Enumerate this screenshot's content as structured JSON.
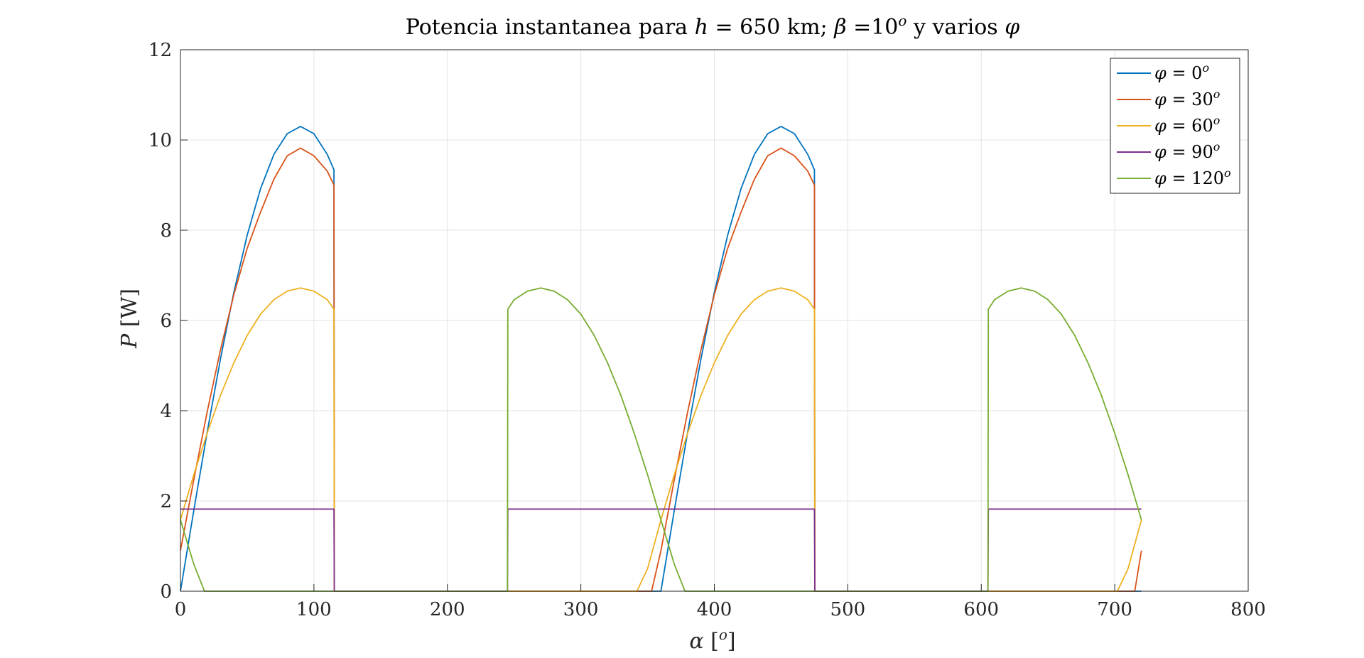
{
  "chart_data": {
    "type": "line",
    "title": "Potencia instantanea para h = 650 km; β =10º y varios φ",
    "title_parts": {
      "p1": "Potencia instantanea para ",
      "h": "h",
      "p2": " = 650 km; ",
      "beta": "β",
      "p3": " =10",
      "sup": "o",
      "p4": " y varios ",
      "phi": "φ"
    },
    "xlabel": "α [º]",
    "xlabel_parts": {
      "sym": "α",
      "open": " [",
      "sup": "o",
      "close": "]"
    },
    "ylabel": "P [W]",
    "ylabel_parts": {
      "sym": "P",
      "rest": " [W]"
    },
    "xlim": [
      0,
      800
    ],
    "ylim": [
      0,
      12
    ],
    "x_ticks": [
      "0",
      "100",
      "200",
      "300",
      "400",
      "500",
      "600",
      "700",
      "800"
    ],
    "y_ticks": [
      "0",
      "2",
      "4",
      "6",
      "8",
      "10",
      "12"
    ],
    "grid": true,
    "legend_position": "top-right",
    "series": [
      {
        "name": "φ = 0º",
        "legend_value": "0",
        "color": "#0072BD",
        "points": [
          [
            0,
            0
          ],
          [
            10,
            1.79
          ],
          [
            20,
            3.52
          ],
          [
            30,
            5.15
          ],
          [
            40,
            6.62
          ],
          [
            50,
            7.89
          ],
          [
            60,
            8.92
          ],
          [
            70,
            9.68
          ],
          [
            80,
            10.14
          ],
          [
            90,
            10.3
          ],
          [
            100,
            10.14
          ],
          [
            110,
            9.68
          ],
          [
            115,
            9.34
          ],
          [
            115.3,
            0
          ],
          [
            358,
            0
          ],
          [
            360,
            0
          ],
          [
            370,
            1.79
          ],
          [
            380,
            3.52
          ],
          [
            390,
            5.15
          ],
          [
            400,
            6.62
          ],
          [
            410,
            7.89
          ],
          [
            420,
            8.92
          ],
          [
            430,
            9.68
          ],
          [
            440,
            10.14
          ],
          [
            450,
            10.3
          ],
          [
            460,
            10.14
          ],
          [
            470,
            9.68
          ],
          [
            475,
            9.34
          ],
          [
            475.3,
            0
          ],
          [
            720,
            0
          ]
        ]
      },
      {
        "name": "φ = 30º",
        "legend_value": "30",
        "color": "#D95319",
        "points": [
          [
            0,
            0.9
          ],
          [
            10,
            2.47
          ],
          [
            20,
            3.97
          ],
          [
            30,
            5.35
          ],
          [
            40,
            6.57
          ],
          [
            50,
            7.6
          ],
          [
            60,
            8.4
          ],
          [
            70,
            9.13
          ],
          [
            80,
            9.65
          ],
          [
            90,
            9.82
          ],
          [
            100,
            9.65
          ],
          [
            110,
            9.31
          ],
          [
            115,
            9.0
          ],
          [
            115.3,
            0
          ],
          [
            350,
            0
          ],
          [
            353,
            0
          ],
          [
            360,
            0.9
          ],
          [
            370,
            2.47
          ],
          [
            380,
            3.97
          ],
          [
            390,
            5.35
          ],
          [
            400,
            6.57
          ],
          [
            410,
            7.6
          ],
          [
            420,
            8.4
          ],
          [
            430,
            9.13
          ],
          [
            440,
            9.65
          ],
          [
            450,
            9.82
          ],
          [
            460,
            9.65
          ],
          [
            470,
            9.31
          ],
          [
            475,
            9.0
          ],
          [
            475.3,
            0
          ],
          [
            712,
            0
          ],
          [
            715,
            0
          ],
          [
            720,
            0.9
          ]
        ]
      },
      {
        "name": "φ = 60º",
        "legend_value": "60",
        "color": "#EDB120",
        "points": [
          [
            0,
            1.58
          ],
          [
            10,
            2.58
          ],
          [
            20,
            3.5
          ],
          [
            30,
            4.34
          ],
          [
            40,
            5.06
          ],
          [
            50,
            5.67
          ],
          [
            60,
            6.14
          ],
          [
            70,
            6.46
          ],
          [
            80,
            6.65
          ],
          [
            90,
            6.72
          ],
          [
            100,
            6.65
          ],
          [
            110,
            6.46
          ],
          [
            115,
            6.25
          ],
          [
            115.3,
            0
          ],
          [
            342,
            0
          ],
          [
            350,
            0.5
          ],
          [
            360,
            1.58
          ],
          [
            370,
            2.58
          ],
          [
            380,
            3.5
          ],
          [
            390,
            4.34
          ],
          [
            400,
            5.06
          ],
          [
            410,
            5.67
          ],
          [
            420,
            6.14
          ],
          [
            430,
            6.46
          ],
          [
            440,
            6.65
          ],
          [
            450,
            6.72
          ],
          [
            460,
            6.65
          ],
          [
            470,
            6.46
          ],
          [
            475,
            6.25
          ],
          [
            475.3,
            0
          ],
          [
            702,
            0
          ],
          [
            710,
            0.5
          ],
          [
            720,
            1.58
          ]
        ]
      },
      {
        "name": "φ = 90º",
        "legend_value": "90",
        "color": "#7E2F8E",
        "points": [
          [
            0,
            1.82
          ],
          [
            115,
            1.82
          ],
          [
            115.3,
            0
          ],
          [
            245,
            0
          ],
          [
            245.3,
            1.82
          ],
          [
            475,
            1.82
          ],
          [
            475.3,
            0
          ],
          [
            605,
            0
          ],
          [
            605.3,
            1.82
          ],
          [
            720,
            1.82
          ]
        ]
      },
      {
        "name": "φ = 120º",
        "legend_value": "120",
        "color": "#77AC30",
        "points": [
          [
            0,
            1.58
          ],
          [
            10,
            0.6
          ],
          [
            18,
            0
          ],
          [
            245,
            0
          ],
          [
            245.3,
            6.25
          ],
          [
            250,
            6.46
          ],
          [
            260,
            6.65
          ],
          [
            270,
            6.72
          ],
          [
            280,
            6.65
          ],
          [
            290,
            6.46
          ],
          [
            300,
            6.14
          ],
          [
            310,
            5.67
          ],
          [
            320,
            5.06
          ],
          [
            330,
            4.34
          ],
          [
            340,
            3.5
          ],
          [
            350,
            2.58
          ],
          [
            360,
            1.58
          ],
          [
            370,
            0.6
          ],
          [
            378,
            0
          ],
          [
            605,
            0
          ],
          [
            605.3,
            6.25
          ],
          [
            610,
            6.46
          ],
          [
            620,
            6.65
          ],
          [
            630,
            6.72
          ],
          [
            640,
            6.65
          ],
          [
            650,
            6.46
          ],
          [
            660,
            6.14
          ],
          [
            670,
            5.67
          ],
          [
            680,
            5.06
          ],
          [
            690,
            4.34
          ],
          [
            700,
            3.5
          ],
          [
            710,
            2.58
          ],
          [
            720,
            1.58
          ]
        ]
      }
    ]
  }
}
